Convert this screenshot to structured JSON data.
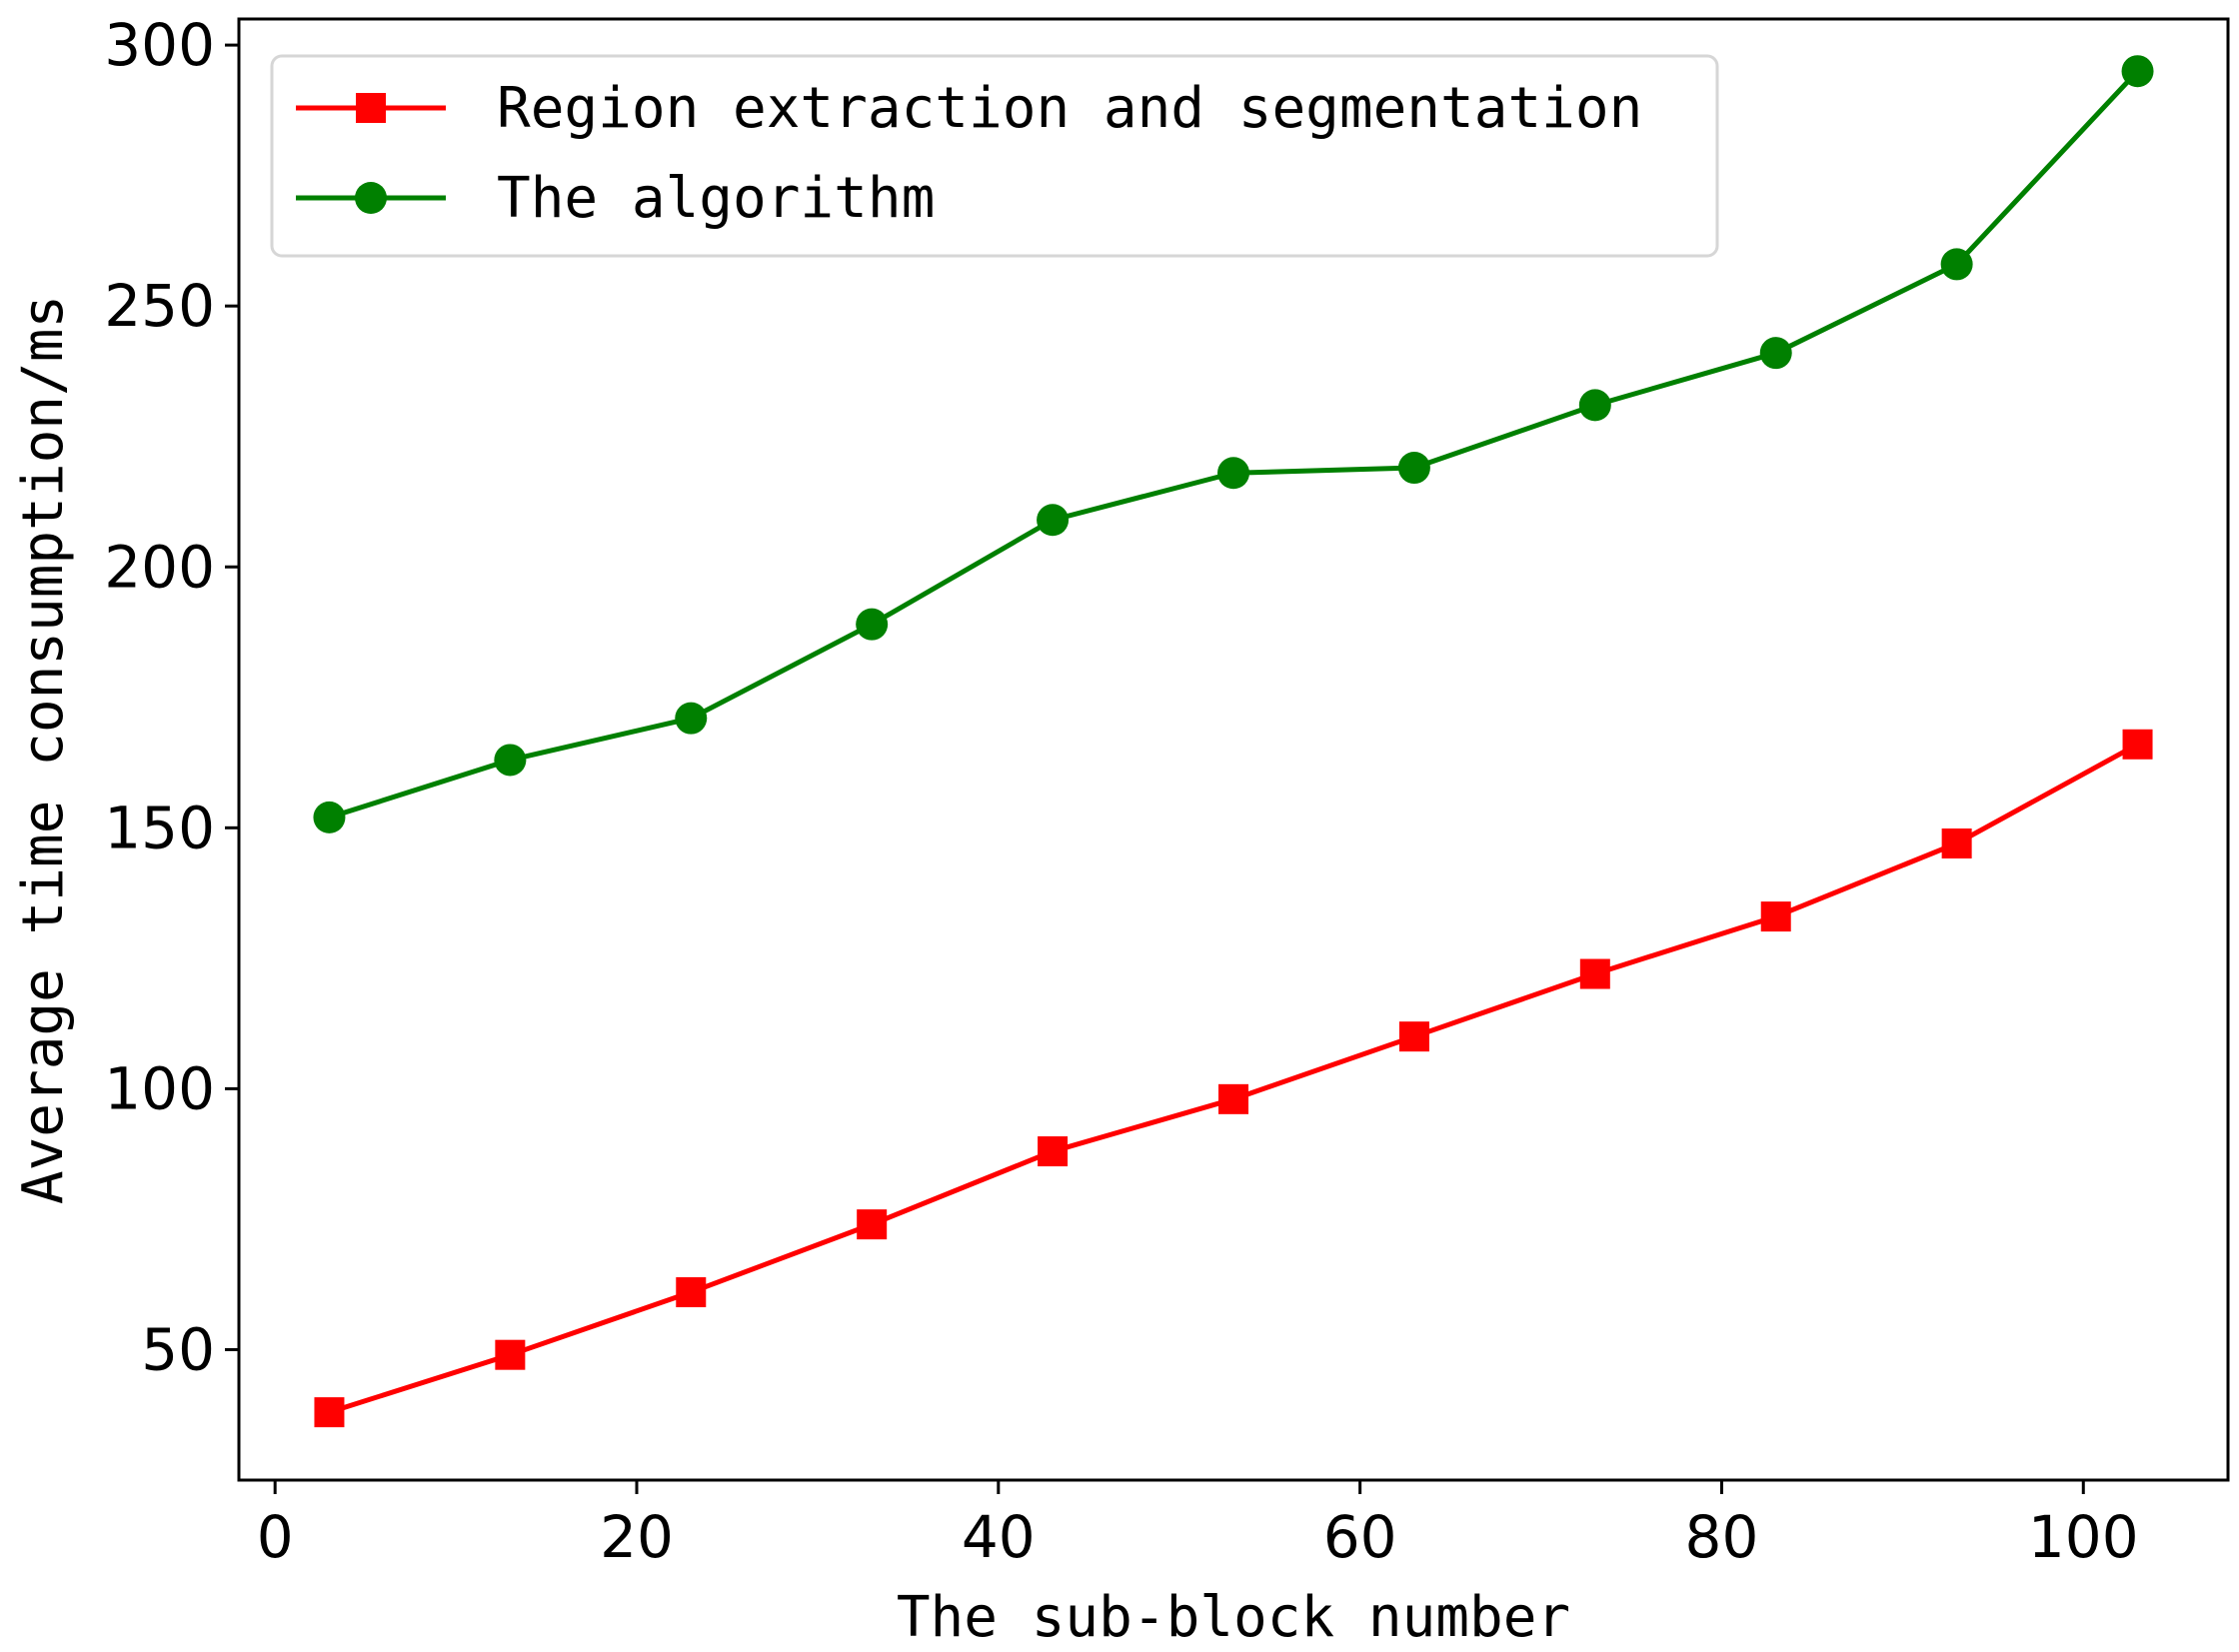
{
  "chart_data": {
    "type": "line",
    "title": "",
    "xlabel": "The sub-block number",
    "ylabel": "Average time consumption/ms",
    "xlim": [
      -2,
      108
    ],
    "ylim": [
      25,
      305
    ],
    "xticks": [
      0,
      20,
      40,
      60,
      80,
      100
    ],
    "yticks": [
      50,
      100,
      150,
      200,
      250,
      300
    ],
    "grid": false,
    "legend_position": "top-left",
    "x": [
      3,
      13,
      23,
      33,
      43,
      53,
      63,
      73,
      83,
      93,
      103
    ],
    "series": [
      {
        "name": "Region extraction and segmentation",
        "color": "#ff0000",
        "marker": "square",
        "values": [
          38,
          49,
          61,
          74,
          88,
          98,
          110,
          122,
          133,
          147,
          166
        ]
      },
      {
        "name": "The algorithm",
        "color": "#008000",
        "marker": "circle",
        "values": [
          152,
          163,
          171,
          189,
          209,
          218,
          219,
          231,
          241,
          258,
          295
        ]
      }
    ]
  }
}
